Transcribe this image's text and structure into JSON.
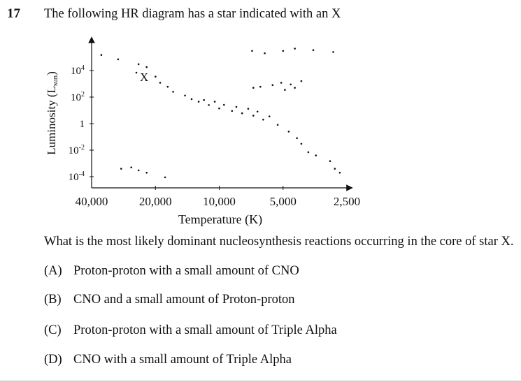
{
  "question": {
    "number": "17",
    "stem": "The following HR diagram has a star indicated with an X",
    "prompt": "What is the most likely dominant nucleosynthesis reactions occurring in the core of star X.",
    "options": [
      {
        "letter": "(A)",
        "text": "Proton-proton with a small amount of CNO"
      },
      {
        "letter": "(B)",
        "text": "CNO and a small amount of Proton-proton"
      },
      {
        "letter": "(C)",
        "text": "Proton-proton with a small amount of Triple Alpha"
      },
      {
        "letter": "(D)",
        "text": "CNO with a small amount of Triple Alpha"
      }
    ]
  },
  "chart_data": {
    "type": "scatter",
    "title": "",
    "xlabel": "Temperature (K)",
    "ylabel_main": "Luminosity (L",
    "ylabel_sub": "sun",
    "ylabel_close": ")",
    "x_scale": "log, decreasing",
    "y_scale": "log",
    "x_ticks": [
      {
        "value": 40000,
        "label": "40,000"
      },
      {
        "value": 20000,
        "label": "20,000"
      },
      {
        "value": 10000,
        "label": "10,000"
      },
      {
        "value": 5000,
        "label": "5,000"
      },
      {
        "value": 2500,
        "label": "2,500"
      }
    ],
    "y_ticks": [
      {
        "value": 10000,
        "base": "10",
        "exp": "4"
      },
      {
        "value": 100,
        "base": "10",
        "exp": "2"
      },
      {
        "value": 1,
        "base": "1",
        "exp": ""
      },
      {
        "value": 0.01,
        "base": "10",
        "exp": "-2"
      },
      {
        "value": 0.0001,
        "base": "10",
        "exp": "-4"
      }
    ],
    "xlim": [
      40000,
      2500
    ],
    "ylim": [
      2e-05,
      300000
    ],
    "marked_star": {
      "label": "X",
      "temperature": 18500,
      "luminosity": 5000
    },
    "points": [
      {
        "x": 36000,
        "y": 150000
      },
      {
        "x": 30000,
        "y": 70000
      },
      {
        "x": 24000,
        "y": 30000
      },
      {
        "x": 22000,
        "y": 18000
      },
      {
        "x": 20000,
        "y": 3500
      },
      {
        "x": 19000,
        "y": 1200
      },
      {
        "x": 17500,
        "y": 600
      },
      {
        "x": 16500,
        "y": 250
      },
      {
        "x": 14500,
        "y": 130
      },
      {
        "x": 13500,
        "y": 70
      },
      {
        "x": 12500,
        "y": 45
      },
      {
        "x": 11800,
        "y": 60
      },
      {
        "x": 11200,
        "y": 25
      },
      {
        "x": 10500,
        "y": 45
      },
      {
        "x": 10000,
        "y": 14
      },
      {
        "x": 9500,
        "y": 26
      },
      {
        "x": 8700,
        "y": 9
      },
      {
        "x": 8300,
        "y": 18
      },
      {
        "x": 7800,
        "y": 6
      },
      {
        "x": 7300,
        "y": 13
      },
      {
        "x": 6900,
        "y": 4
      },
      {
        "x": 6600,
        "y": 8
      },
      {
        "x": 6200,
        "y": 2
      },
      {
        "x": 5800,
        "y": 3.5
      },
      {
        "x": 5300,
        "y": 0.8
      },
      {
        "x": 4700,
        "y": 0.25
      },
      {
        "x": 4300,
        "y": 0.08
      },
      {
        "x": 4100,
        "y": 0.03
      },
      {
        "x": 3800,
        "y": 0.007
      },
      {
        "x": 3500,
        "y": 0.004
      },
      {
        "x": 3000,
        "y": 0.0015
      },
      {
        "x": 2850,
        "y": 0.0004
      },
      {
        "x": 2700,
        "y": 0.0002
      },
      {
        "x": 7000,
        "y": 300000
      },
      {
        "x": 6100,
        "y": 200000
      },
      {
        "x": 5000,
        "y": 300000
      },
      {
        "x": 4400,
        "y": 450000
      },
      {
        "x": 3600,
        "y": 350000
      },
      {
        "x": 2900,
        "y": 250000
      },
      {
        "x": 6900,
        "y": 500
      },
      {
        "x": 6400,
        "y": 600
      },
      {
        "x": 5600,
        "y": 800
      },
      {
        "x": 5100,
        "y": 1200
      },
      {
        "x": 4900,
        "y": 350
      },
      {
        "x": 4600,
        "y": 900
      },
      {
        "x": 4400,
        "y": 500
      },
      {
        "x": 4100,
        "y": 1600
      },
      {
        "x": 29000,
        "y": 0.0004
      },
      {
        "x": 26000,
        "y": 0.0005
      },
      {
        "x": 24000,
        "y": 0.0003
      },
      {
        "x": 22000,
        "y": 0.0002
      },
      {
        "x": 18000,
        "y": 9e-05
      }
    ]
  }
}
